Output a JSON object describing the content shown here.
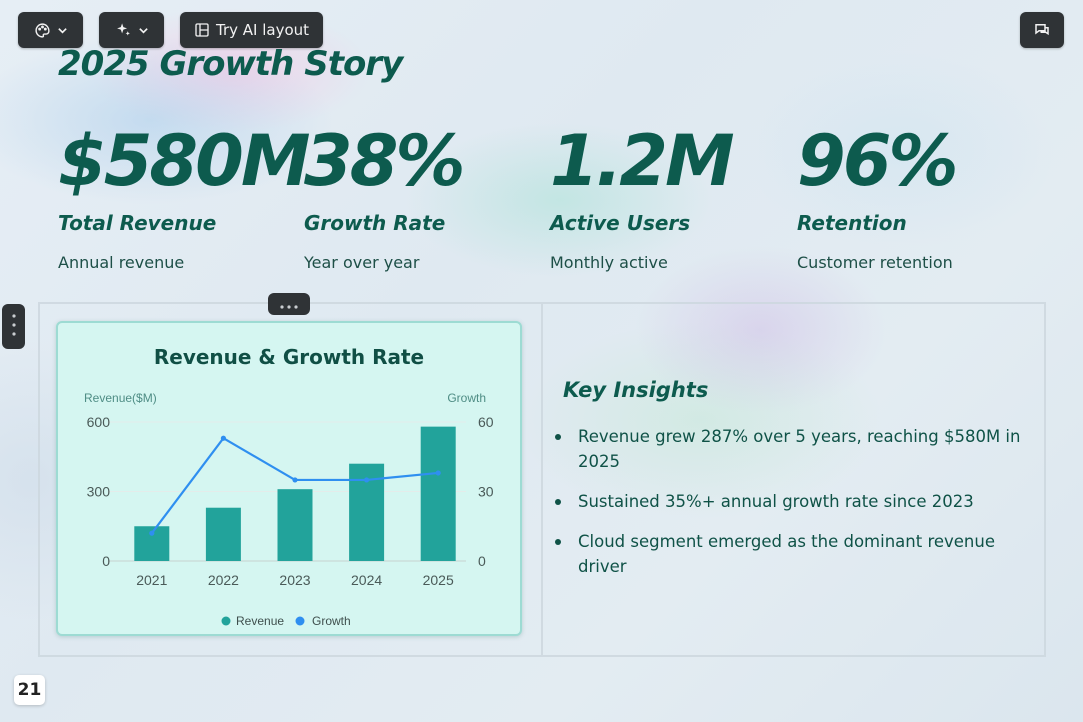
{
  "toolbar": {
    "theme_icon": "palette-icon",
    "ai_icon": "sparkle-icon",
    "layout_icon": "layout-icon",
    "layout_label": "Try AI layout",
    "chat_icon": "chat-icon"
  },
  "slide": {
    "title": "2025 Growth Story",
    "page_number": "21"
  },
  "stats": [
    {
      "value": "$580M",
      "label": "Total Revenue",
      "sub": "Annual revenue"
    },
    {
      "value": "38%",
      "label": "Growth Rate",
      "sub": "Year over year"
    },
    {
      "value": "1.2M",
      "label": "Active Users",
      "sub": "Monthly active"
    },
    {
      "value": "96%",
      "label": "Retention",
      "sub": "Customer retention"
    }
  ],
  "insights": {
    "title": "Key Insights",
    "items": [
      "Revenue grew 287% over 5 years, reaching $580M in 2025",
      "Sustained 35%+ annual growth rate since 2023",
      "Cloud segment emerged as the dominant revenue driver"
    ]
  },
  "chart_data": {
    "type": "bar",
    "title": "Revenue & Growth Rate",
    "categories": [
      "2021",
      "2022",
      "2023",
      "2024",
      "2025"
    ],
    "series": [
      {
        "name": "Revenue",
        "type": "bar",
        "axis": "left",
        "color": "#22a39b",
        "values": [
          150,
          230,
          310,
          420,
          580
        ]
      },
      {
        "name": "Growth",
        "type": "line",
        "axis": "right",
        "color": "#2f8ff0",
        "values": [
          12,
          53,
          35,
          35,
          38
        ]
      }
    ],
    "y_left": {
      "label": "Revenue($M)",
      "ticks": [
        "0",
        "300",
        "600"
      ],
      "range": [
        0,
        600
      ]
    },
    "y_right": {
      "label": "Growth",
      "ticks": [
        "0",
        "30",
        "60"
      ],
      "range": [
        0,
        60
      ]
    },
    "grid": true,
    "legend": "bottom"
  }
}
